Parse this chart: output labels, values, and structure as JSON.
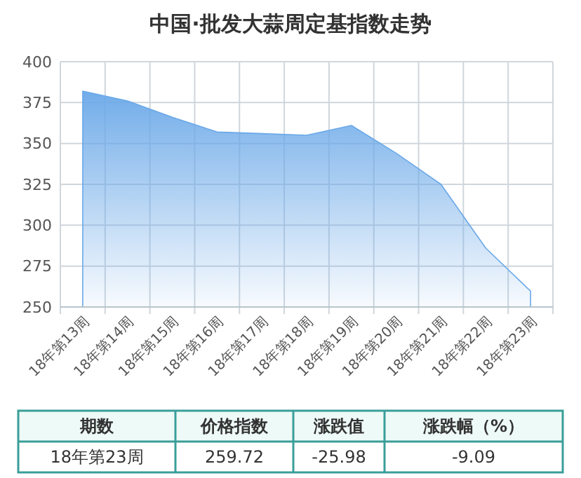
{
  "chart_data": {
    "type": "area",
    "title": "中国·批发大蒜周定基指数走势",
    "categories": [
      "18年第13周",
      "18年第14周",
      "18年第15周",
      "18年第16周",
      "18年第17周",
      "18年第18周",
      "18年第19周",
      "18年第20周",
      "18年第21周",
      "18年第22周",
      "18年第23周"
    ],
    "series": [
      {
        "color": "#6aa8e8",
        "values": [
          382,
          376,
          366,
          357,
          356,
          355,
          361,
          344,
          325,
          286,
          259.72
        ]
      }
    ],
    "ylim": [
      250,
      400
    ],
    "yticks": [
      250,
      275,
      300,
      325,
      350,
      375,
      400
    ],
    "grid": true,
    "annotations": [
      "期数",
      "价格指数",
      "涨跌值",
      "涨跌幅（%）",
      "18年第23周",
      "259.72",
      "-25.98",
      "-9.09"
    ]
  }
}
